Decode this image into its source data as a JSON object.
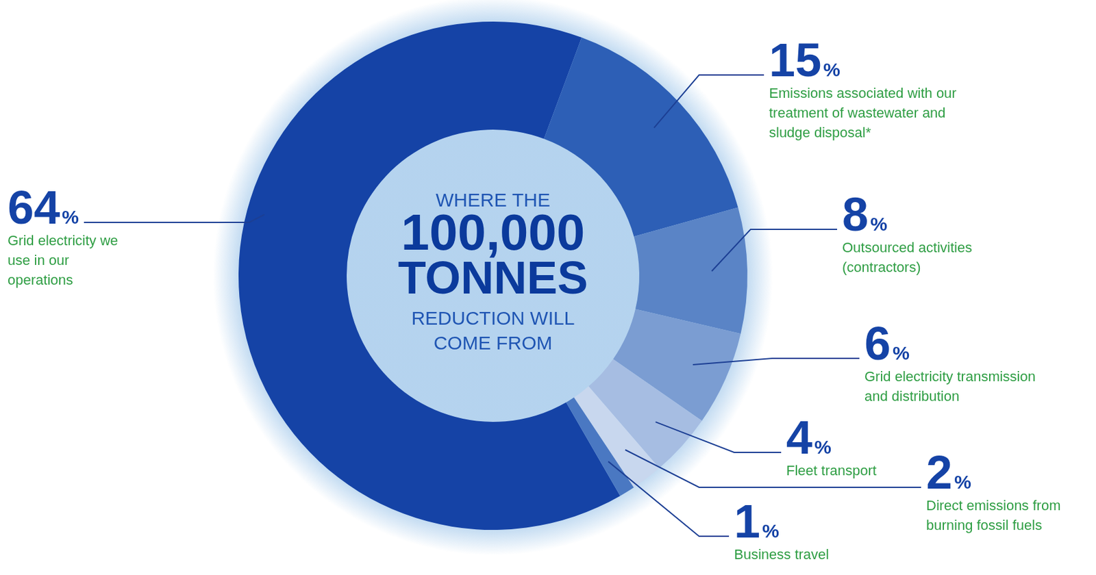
{
  "chart_data": {
    "type": "doughnut",
    "categories": [
      "Grid electricity we use in our operations",
      "Emissions associated with our treatment of wastewater and sludge disposal*",
      "Outsourced activities (contractors)",
      "Grid electricity transmission and distribution",
      "Fleet transport",
      "Direct emissions from burning fossil fuels",
      "Business travel"
    ],
    "values": [
      64,
      15,
      8,
      6,
      4,
      2,
      1
    ],
    "value_labels": [
      "64%",
      "15%",
      "8%",
      "6%",
      "4%",
      "2%",
      "1%"
    ],
    "colors": [
      "#1543a6",
      "#2d5fb6",
      "#5a84c6",
      "#7b9dd2",
      "#a6bde2",
      "#c8d7ee",
      "#4a78c2"
    ],
    "data_labels": true,
    "center_text": [
      "WHERE THE",
      "100,000",
      "TONNES",
      "REDUCTION WILL",
      "COME FROM"
    ]
  }
}
